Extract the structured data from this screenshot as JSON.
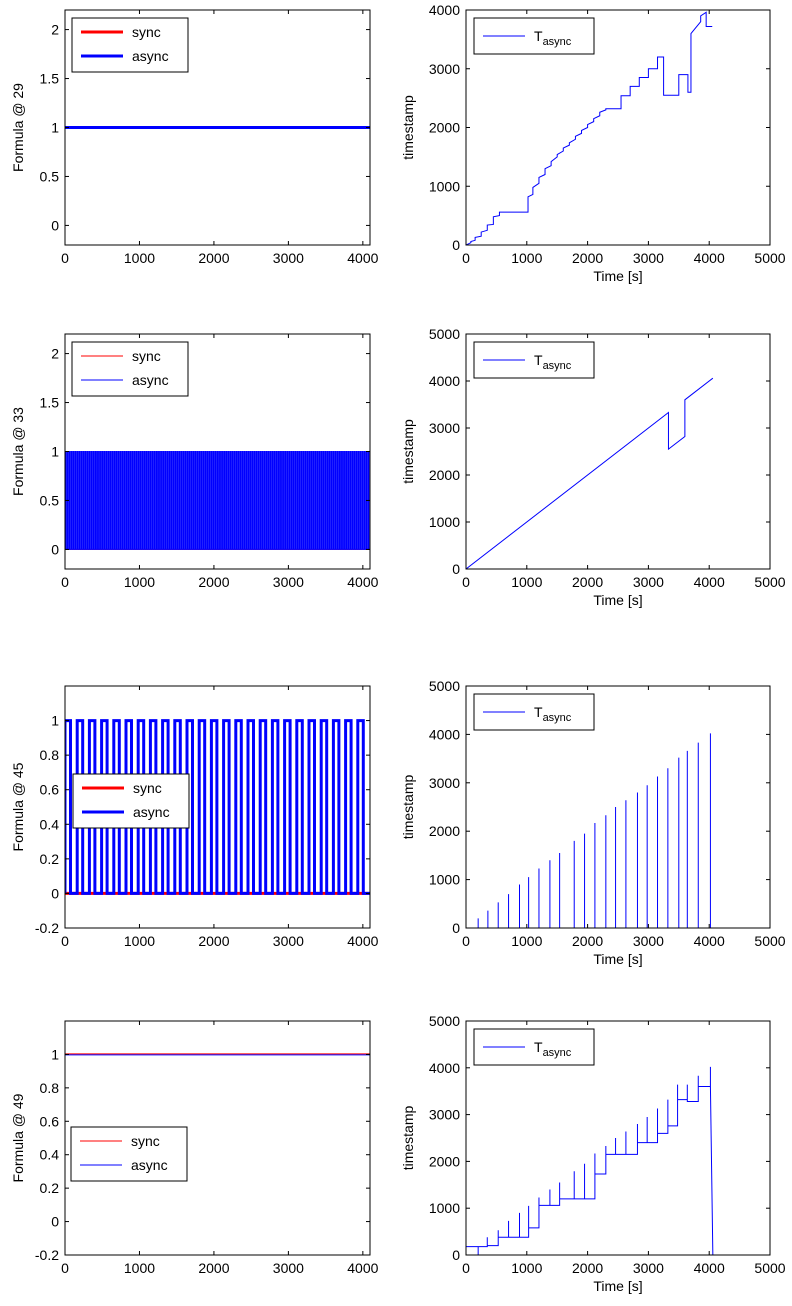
{
  "chart_data": [
    {
      "id": "p1",
      "type": "line",
      "xlim": [
        0,
        4096
      ],
      "ylim": [
        -0.2,
        2.2
      ],
      "xticks": [
        0,
        1000,
        2000,
        3000,
        4000
      ],
      "xtick_labels": [
        "0",
        "1000",
        "2000",
        "3000",
        "4000"
      ],
      "yticks": [
        0,
        0.5,
        1,
        1.5,
        2
      ],
      "ytick_labels": [
        "0",
        "0.5",
        "1",
        "1.5",
        "2"
      ],
      "xlabel": "",
      "ylabel": "Formula @ 29",
      "legend": {
        "location": "top-left",
        "entries": [
          "sync",
          "async"
        ]
      },
      "series": [
        {
          "name": "sync",
          "color": "#ff0000",
          "style": "thick",
          "kind": "constant",
          "value": 1
        },
        {
          "name": "async",
          "color": "#0000ff",
          "style": "thick",
          "kind": "constant",
          "value": 1
        }
      ]
    },
    {
      "id": "p2",
      "type": "line",
      "xlim": [
        0,
        5000
      ],
      "ylim": [
        0,
        4000
      ],
      "xticks": [
        0,
        1000,
        2000,
        3000,
        4000,
        5000
      ],
      "xtick_labels": [
        "0",
        "1000",
        "2000",
        "3000",
        "4000",
        "5000"
      ],
      "yticks": [
        0,
        1000,
        2000,
        3000,
        4000
      ],
      "ytick_labels": [
        "0",
        "1000",
        "2000",
        "3000",
        "4000"
      ],
      "xlabel": "Time [s]",
      "ylabel": "timestamp",
      "legend": {
        "location": "top-left",
        "entries": [
          "T",
          "async"
        ]
      },
      "series": [
        {
          "name": "T_async",
          "color": "#0000ff",
          "style": "thin",
          "kind": "points",
          "x": [
            0,
            80,
            80,
            150,
            150,
            250,
            250,
            350,
            350,
            450,
            450,
            550,
            550,
            1020,
            1020,
            1100,
            1100,
            1200,
            1200,
            1300,
            1300,
            1400,
            1400,
            1500,
            1500,
            1600,
            1600,
            1700,
            1700,
            1800,
            1800,
            1900,
            1900,
            2000,
            2000,
            2100,
            2100,
            2200,
            2200,
            2300,
            2300,
            2550,
            2550,
            2700,
            2700,
            2850,
            2850,
            3000,
            3000,
            3150,
            3150,
            3250,
            3250,
            3500,
            3500,
            3650,
            3650,
            3700,
            3700,
            3860,
            3860,
            3950,
            3950,
            4050
          ],
          "y": [
            0,
            40,
            60,
            80,
            130,
            150,
            220,
            250,
            340,
            350,
            480,
            500,
            560,
            560,
            820,
            860,
            980,
            1050,
            1150,
            1200,
            1300,
            1350,
            1420,
            1500,
            1540,
            1600,
            1650,
            1700,
            1740,
            1800,
            1850,
            1900,
            1950,
            2000,
            2050,
            2100,
            2150,
            2200,
            2260,
            2300,
            2320,
            2320,
            2540,
            2540,
            2700,
            2700,
            2850,
            2850,
            3000,
            3000,
            3200,
            3200,
            2550,
            2550,
            2900,
            2900,
            2600,
            2600,
            3600,
            3800,
            3900,
            3960,
            3720,
            3720
          ]
        }
      ]
    },
    {
      "id": "p3",
      "type": "line",
      "xlim": [
        0,
        4096
      ],
      "ylim": [
        -0.2,
        2.2
      ],
      "xticks": [
        0,
        1000,
        2000,
        3000,
        4000
      ],
      "xtick_labels": [
        "0",
        "1000",
        "2000",
        "3000",
        "4000"
      ],
      "yticks": [
        0,
        0.5,
        1,
        1.5,
        2
      ],
      "ytick_labels": [
        "0",
        "0.5",
        "1",
        "1.5",
        "2"
      ],
      "xlabel": "",
      "ylabel": "Formula @ 33",
      "legend": {
        "location": "top-left",
        "entries": [
          "sync",
          "async"
        ]
      },
      "series": [
        {
          "name": "sync",
          "color": "#ff0000",
          "style": "thin",
          "kind": "constant",
          "value": 0
        },
        {
          "name": "async",
          "color": "#0000ff",
          "style": "thin",
          "kind": "pulses",
          "low": 0,
          "high": 1,
          "start": 0,
          "end": 4096,
          "count": 150
        }
      ]
    },
    {
      "id": "p4",
      "type": "line",
      "xlim": [
        0,
        5000
      ],
      "ylim": [
        0,
        5000
      ],
      "xticks": [
        0,
        1000,
        2000,
        3000,
        4000,
        5000
      ],
      "xtick_labels": [
        "0",
        "1000",
        "2000",
        "3000",
        "4000",
        "5000"
      ],
      "yticks": [
        0,
        1000,
        2000,
        3000,
        4000,
        5000
      ],
      "ytick_labels": [
        "0",
        "1000",
        "2000",
        "3000",
        "4000",
        "5000"
      ],
      "xlabel": "Time [s]",
      "ylabel": "timestamp",
      "legend": {
        "location": "top-left",
        "entries": [
          "T",
          "async"
        ]
      },
      "series": [
        {
          "name": "T_async",
          "color": "#0000ff",
          "style": "thin",
          "kind": "points",
          "x": [
            0,
            3330,
            3330,
            3600,
            3600,
            4060
          ],
          "y": [
            0,
            3330,
            2550,
            2820,
            3600,
            4060
          ]
        }
      ]
    },
    {
      "id": "p5",
      "type": "line",
      "xlim": [
        0,
        4096
      ],
      "ylim": [
        -0.2,
        1.2
      ],
      "xticks": [
        0,
        1000,
        2000,
        3000,
        4000
      ],
      "xtick_labels": [
        "0",
        "1000",
        "2000",
        "3000",
        "4000"
      ],
      "yticks": [
        -0.2,
        0,
        0.2,
        0.4,
        0.6,
        0.8,
        1
      ],
      "ytick_labels": [
        "-0.2",
        "0",
        "0.2",
        "0.4",
        "0.6",
        "0.8",
        "1"
      ],
      "xlabel": "",
      "ylabel": "Formula @ 45",
      "legend": {
        "location": "middle-left",
        "entries": [
          "sync",
          "async"
        ]
      },
      "series": [
        {
          "name": "sync",
          "color": "#ff0000",
          "style": "thick",
          "kind": "constant",
          "value": 0
        },
        {
          "name": "async",
          "color": "#0000ff",
          "style": "thick",
          "kind": "pulses",
          "low": 0,
          "high": 1,
          "start": 0,
          "end": 4096,
          "count": 25
        }
      ]
    },
    {
      "id": "p6",
      "type": "line",
      "xlim": [
        0,
        5000
      ],
      "ylim": [
        0,
        5000
      ],
      "xticks": [
        0,
        1000,
        2000,
        3000,
        4000,
        5000
      ],
      "xtick_labels": [
        "0",
        "1000",
        "2000",
        "3000",
        "4000",
        "5000"
      ],
      "yticks": [
        0,
        1000,
        2000,
        3000,
        4000,
        5000
      ],
      "ytick_labels": [
        "0",
        "1000",
        "2000",
        "3000",
        "4000",
        "5000"
      ],
      "xlabel": "Time [s]",
      "ylabel": "timestamp",
      "legend": {
        "location": "top-left",
        "entries": [
          "T",
          "async"
        ]
      },
      "series": [
        {
          "name": "T_async",
          "color": "#0000ff",
          "style": "thin",
          "kind": "sawtooth",
          "x": [
            200,
            360,
            530,
            700,
            880,
            1030,
            1200,
            1380,
            1540,
            1780,
            1950,
            2120,
            2300,
            2460,
            2630,
            2820,
            2980,
            3150,
            3320,
            3500,
            3640,
            3640,
            3820,
            4020
          ],
          "y": [
            200,
            360,
            530,
            700,
            900,
            1050,
            1230,
            1400,
            1550,
            1800,
            1950,
            2170,
            2330,
            2500,
            2640,
            2800,
            2950,
            3130,
            3300,
            3520,
            3660,
            3640,
            3830,
            4020
          ]
        }
      ]
    },
    {
      "id": "p7",
      "type": "line",
      "xlim": [
        0,
        4096
      ],
      "ylim": [
        -0.2,
        1.2
      ],
      "xticks": [
        0,
        1000,
        2000,
        3000,
        4000
      ],
      "xtick_labels": [
        "0",
        "1000",
        "2000",
        "3000",
        "4000"
      ],
      "yticks": [
        -0.2,
        0,
        0.2,
        0.4,
        0.6,
        0.8,
        1
      ],
      "ytick_labels": [
        "-0.2",
        "0",
        "0.2",
        "0.4",
        "0.6",
        "0.8",
        "1"
      ],
      "xlabel": "",
      "ylabel": "Formula @ 49",
      "legend": {
        "location": "bottom-left",
        "entries": [
          "sync",
          "async"
        ]
      },
      "series": [
        {
          "name": "sync",
          "color": "#ff0000",
          "style": "thin",
          "kind": "constant",
          "value": 1.003
        },
        {
          "name": "async",
          "color": "#0000ff",
          "style": "thin",
          "kind": "constant",
          "value": 0.997
        }
      ]
    },
    {
      "id": "p8",
      "type": "line",
      "xlim": [
        0,
        5000
      ],
      "ylim": [
        0,
        5000
      ],
      "xticks": [
        0,
        1000,
        2000,
        3000,
        4000,
        5000
      ],
      "xtick_labels": [
        "0",
        "1000",
        "2000",
        "3000",
        "4000",
        "5000"
      ],
      "yticks": [
        0,
        1000,
        2000,
        3000,
        4000,
        5000
      ],
      "ytick_labels": [
        "0",
        "1000",
        "2000",
        "3000",
        "4000",
        "5000"
      ],
      "xlabel": "Time [s]",
      "ylabel": "timestamp",
      "legend": {
        "location": "top-left",
        "entries": [
          "T",
          "async"
        ]
      },
      "series": [
        {
          "name": "T_async",
          "color": "#0000ff",
          "style": "thin",
          "kind": "points",
          "x": [
            0,
            0,
            200,
            200,
            200,
            350,
            350,
            350,
            530,
            530,
            530,
            530,
            700,
            700,
            700,
            700,
            880,
            880,
            880,
            1030,
            1030,
            1030,
            1030,
            1200,
            1200,
            1200,
            1380,
            1380,
            1380,
            1540,
            1540,
            1540,
            1540,
            1780,
            1780,
            1780,
            1950,
            1950,
            1950,
            2120,
            2120,
            2120,
            2120,
            2300,
            2300,
            2300,
            2460,
            2460,
            2460,
            2630,
            2630,
            2630,
            2630,
            2820,
            2820,
            2820,
            2980,
            2980,
            2980,
            3150,
            3150,
            3150,
            3150,
            3320,
            3320,
            3320,
            3480,
            3480,
            3480,
            3640,
            3640,
            3640,
            3640,
            3820,
            3820,
            3820,
            4020,
            4020,
            4020,
            4020,
            4060
          ],
          "y": [
            40,
            180,
            180,
            0,
            180,
            180,
            380,
            200,
            200,
            530,
            200,
            380,
            380,
            730,
            380,
            380,
            380,
            900,
            380,
            380,
            1050,
            580,
            580,
            580,
            1230,
            1060,
            1060,
            1400,
            1060,
            1060,
            1550,
            1200,
            1200,
            1200,
            1790,
            1200,
            1200,
            1950,
            1200,
            1200,
            2170,
            1730,
            1730,
            1730,
            2330,
            2150,
            2150,
            2500,
            2150,
            2150,
            2640,
            2150,
            2150,
            2150,
            2800,
            2400,
            2400,
            2950,
            2400,
            2400,
            3130,
            2600,
            2600,
            2600,
            3320,
            2760,
            2760,
            3640,
            3320,
            3320,
            3640,
            3280,
            3280,
            3280,
            3830,
            3600,
            3600,
            4020,
            3600,
            3600,
            0
          ]
        }
      ]
    }
  ]
}
